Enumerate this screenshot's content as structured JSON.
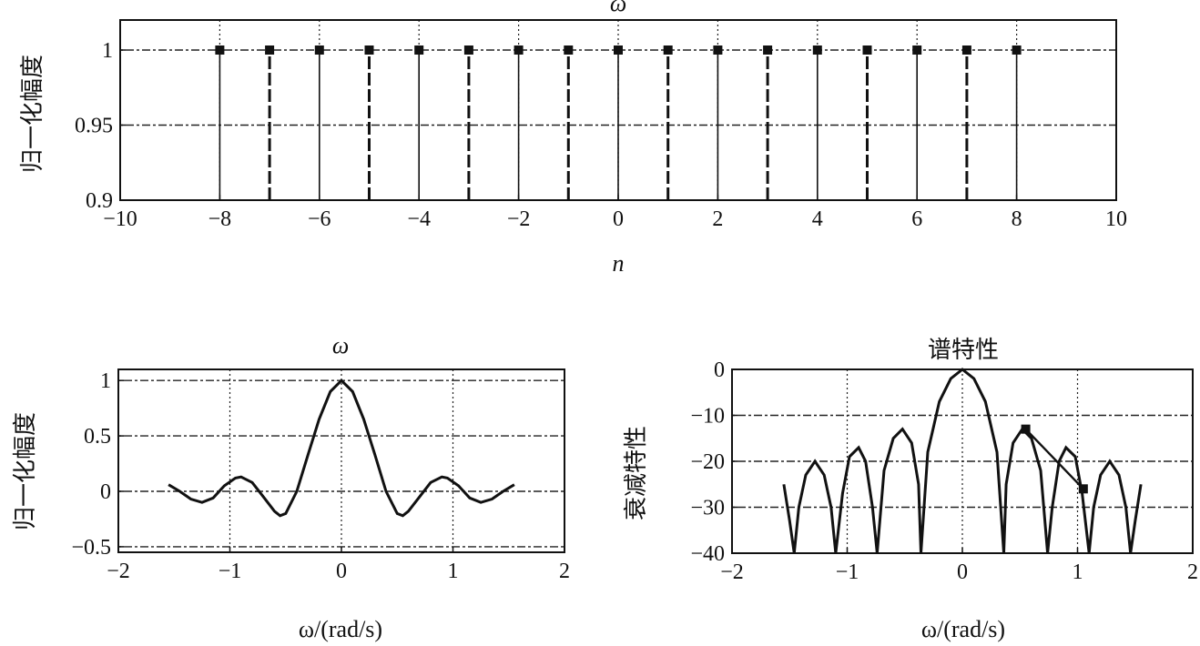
{
  "chart_data": [
    {
      "type": "stem",
      "title": "ω",
      "xlabel": "n",
      "ylabel": "归一化幅度",
      "xlim": [
        -10,
        10
      ],
      "ylim": [
        0.9,
        1.02
      ],
      "xticks": [
        "−10",
        "−8",
        "−6",
        "−4",
        "−2",
        "0",
        "2",
        "4",
        "6",
        "8",
        "10"
      ],
      "yticks": [
        "0.9",
        "0.95",
        "1"
      ],
      "grid": true,
      "x": [
        -8,
        -7,
        -6,
        -5,
        -4,
        -3,
        -2,
        -1,
        0,
        1,
        2,
        3,
        4,
        5,
        6,
        7,
        8
      ],
      "values": [
        1,
        1,
        1,
        1,
        1,
        1,
        1,
        1,
        1,
        1,
        1,
        1,
        1,
        1,
        1,
        1,
        1
      ]
    },
    {
      "type": "line",
      "title": "ω",
      "xlabel": "ω/(rad/s)",
      "ylabel": "归一化幅度",
      "xlim": [
        -2,
        2
      ],
      "ylim": [
        -0.55,
        1.1
      ],
      "xticks": [
        "−2",
        "−1",
        "0",
        "1",
        "2"
      ],
      "yticks": [
        "−0.5",
        "0",
        "0.5",
        "1"
      ],
      "grid": true,
      "x": [
        -1.55,
        -1.45,
        -1.35,
        -1.25,
        -1.15,
        -1.05,
        -0.95,
        -0.9,
        -0.8,
        -0.7,
        -0.6,
        -0.55,
        -0.5,
        -0.4,
        -0.3,
        -0.2,
        -0.1,
        0,
        0.1,
        0.2,
        0.3,
        0.4,
        0.5,
        0.55,
        0.6,
        0.7,
        0.8,
        0.9,
        0.95,
        1.05,
        1.15,
        1.25,
        1.35,
        1.45,
        1.55
      ],
      "y": [
        0.06,
        0.0,
        -0.07,
        -0.1,
        -0.06,
        0.05,
        0.12,
        0.13,
        0.08,
        -0.05,
        -0.18,
        -0.22,
        -0.2,
        0.0,
        0.33,
        0.65,
        0.9,
        1.0,
        0.9,
        0.65,
        0.33,
        0.0,
        -0.2,
        -0.22,
        -0.18,
        -0.05,
        0.08,
        0.13,
        0.12,
        0.05,
        -0.06,
        -0.1,
        -0.07,
        0.0,
        0.06
      ]
    },
    {
      "type": "line",
      "title": "谱特性",
      "xlabel": "ω/(rad/s)",
      "ylabel": "衰减特性",
      "xlim": [
        -2,
        2
      ],
      "ylim": [
        -40,
        0
      ],
      "xticks": [
        "−2",
        "−1",
        "0",
        "1",
        "2"
      ],
      "yticks": [
        "0",
        "−10",
        "−20",
        "−30",
        "−40"
      ],
      "grid": true,
      "x": [
        -1.55,
        -1.5,
        -1.46,
        -1.42,
        -1.36,
        -1.28,
        -1.2,
        -1.14,
        -1.1,
        -1.1,
        -1.04,
        -0.98,
        -0.9,
        -0.84,
        -0.78,
        -0.74,
        -0.74,
        -0.68,
        -0.6,
        -0.52,
        -0.44,
        -0.38,
        -0.36,
        -0.36,
        -0.3,
        -0.2,
        -0.1,
        0,
        0.1,
        0.2,
        0.3,
        0.36,
        0.36,
        0.38,
        0.44,
        0.52,
        0.6,
        0.68,
        0.74,
        0.74,
        0.78,
        0.84,
        0.9,
        0.98,
        1.04,
        1.1,
        1.1,
        1.14,
        1.2,
        1.28,
        1.36,
        1.42,
        1.46,
        1.5,
        1.55
      ],
      "y": [
        -25,
        -33,
        -40,
        -30,
        -23,
        -20,
        -23,
        -30,
        -40,
        -40,
        -27,
        -19,
        -17,
        -20,
        -30,
        -40,
        -40,
        -22,
        -15,
        -13,
        -16,
        -25,
        -40,
        -40,
        -18,
        -7,
        -2,
        0,
        -2,
        -7,
        -18,
        -40,
        -40,
        -25,
        -16,
        -13,
        -15,
        -22,
        -40,
        -40,
        -30,
        -20,
        -17,
        -19,
        -27,
        -40,
        -40,
        -30,
        -23,
        -20,
        -23,
        -30,
        -40,
        -33,
        -25
      ],
      "annotation_points": [
        {
          "x": 0.55,
          "y": -13
        },
        {
          "x": 1.05,
          "y": -26
        }
      ],
      "annotation_line": [
        {
          "x": 0.55,
          "y": -13
        },
        {
          "x": 1.05,
          "y": -26
        }
      ]
    }
  ]
}
